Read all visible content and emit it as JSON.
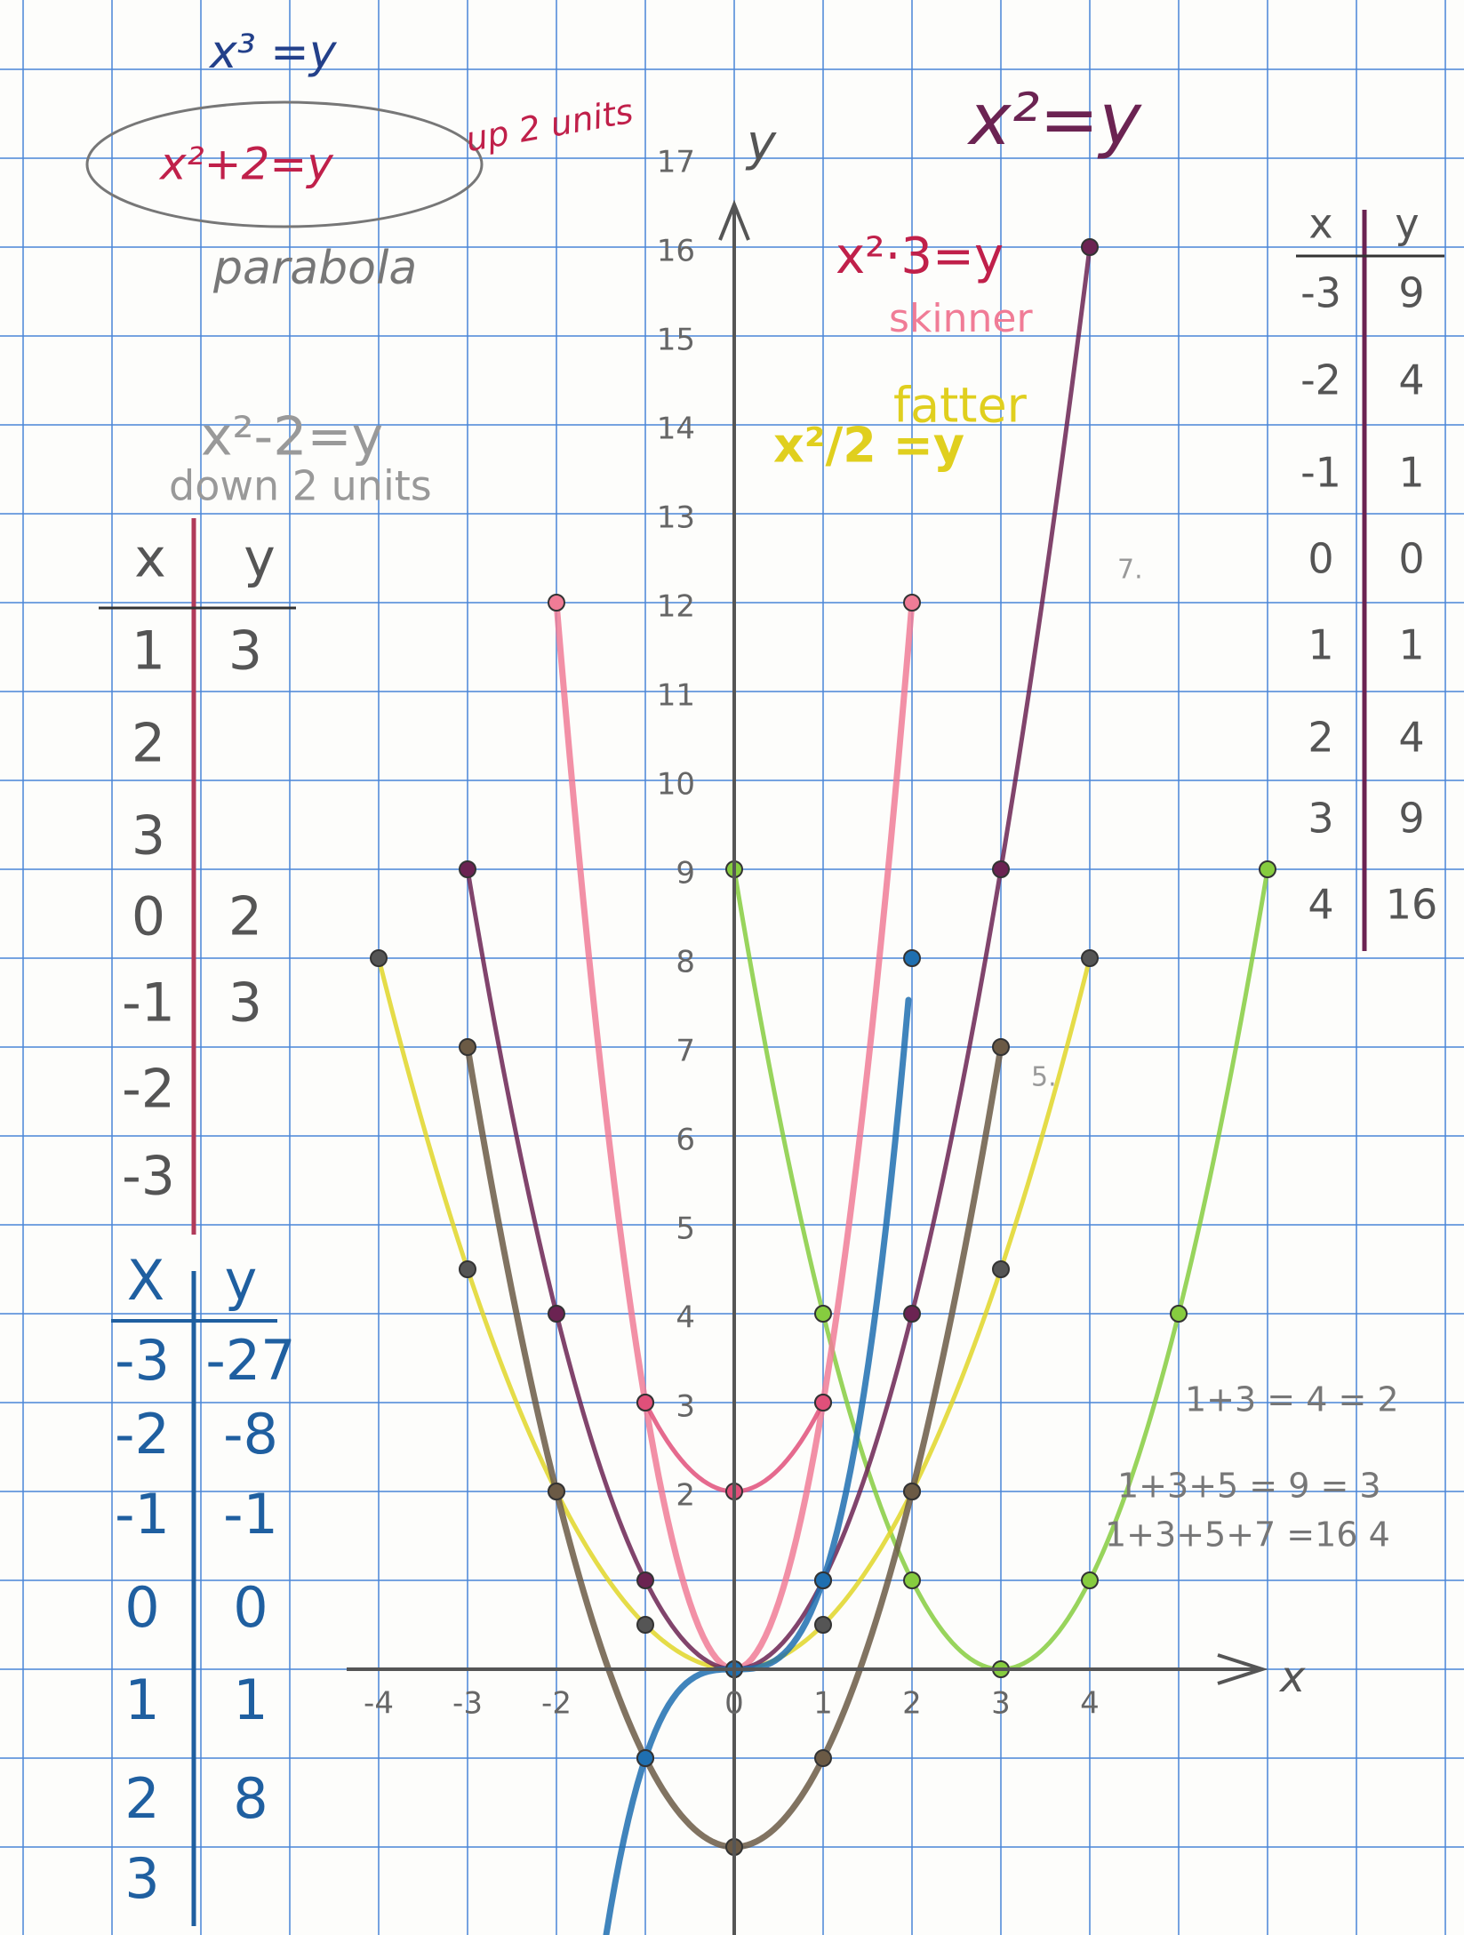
{
  "notes": {
    "cube_equation": "x³ =y",
    "shift_up_equation": "x²+2=y",
    "shift_up_note": "up 2 units",
    "parabola": "parabola",
    "square_equation": "x²=y",
    "skinny_equation": "x²·3=y",
    "skinny_note": "skinner",
    "fat_equation": "x²/2 =y",
    "fat_note": "fatter",
    "shift_down_equation": "x²-2=y",
    "shift_down_note": "down 2 units"
  },
  "axes": {
    "y_label": "y",
    "x_label": "x",
    "y_ticks": [
      17,
      16,
      15,
      14,
      13,
      12,
      11,
      10,
      9,
      8,
      7,
      6,
      5,
      4,
      3,
      2
    ],
    "x_ticks": [
      -4,
      -3,
      -2,
      0,
      1,
      2,
      3,
      4
    ]
  },
  "shift_table": {
    "header": [
      "x",
      "y"
    ],
    "rows": [
      [
        "1",
        "3"
      ],
      [
        "2"
      ],
      [
        "3"
      ],
      [
        "0",
        "2"
      ],
      [
        "-1",
        "3"
      ],
      [
        "-2"
      ],
      [
        "-3"
      ]
    ]
  },
  "cube_table": {
    "header": [
      "X",
      "y"
    ],
    "rows": [
      [
        "-3",
        "-27"
      ],
      [
        "-2",
        "-8"
      ],
      [
        "-1",
        "-1"
      ],
      [
        "0",
        "0"
      ],
      [
        "1",
        "1"
      ],
      [
        "2",
        "8"
      ],
      [
        "3"
      ]
    ]
  },
  "square_table": {
    "header": [
      "x",
      "y"
    ],
    "rows": [
      [
        "-3",
        "9"
      ],
      [
        "-2",
        "4"
      ],
      [
        "-1",
        "1"
      ],
      [
        "0",
        "0"
      ],
      [
        "1",
        "1"
      ],
      [
        "2",
        "4"
      ],
      [
        "3",
        "9"
      ],
      [
        "4",
        "16"
      ]
    ]
  },
  "sums": [
    "1+3 = 4 = 2",
    "1+3+5 = 9 = 3",
    "1+3+5+7 =16 4"
  ],
  "stray_marks": [
    "7.",
    "5."
  ]
}
